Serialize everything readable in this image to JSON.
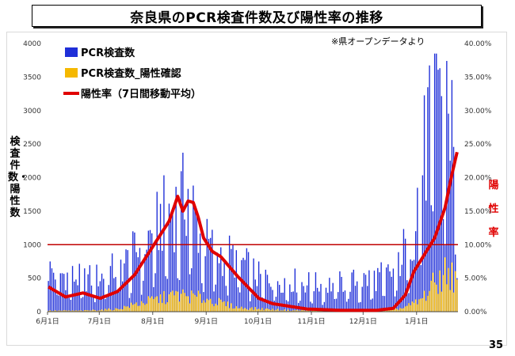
{
  "header": {
    "title": "奈良県のPCR検査件数及び陽性率の推移"
  },
  "source_note": "※県オープンデータより",
  "y_left_label": "検査件数・陽性数",
  "y_right_label": "陽性率",
  "page_number": "35",
  "colors": {
    "tests": "#1f2fd8",
    "positives": "#f5b800",
    "rate": "#e00000",
    "threshold": "#c00000"
  },
  "chart_data": {
    "type": "bar",
    "title": "奈良県のPCR検査件数及び陽性率の推移",
    "x_tick_labels": [
      "6月1日",
      "7月1日",
      "8月1日",
      "9月1日",
      "10月1日",
      "11月1日",
      "12月1日",
      "1月1日"
    ],
    "y_left": {
      "lim": [
        0,
        4000
      ],
      "ticks": [
        "0",
        "500",
        "1000",
        "1500",
        "2000",
        "2500",
        "3000",
        "3500",
        "4000"
      ]
    },
    "y_right": {
      "lim": [
        0,
        40
      ],
      "ticks": [
        "0.00%",
        "5.00%",
        "10.00%",
        "15.00%",
        "20.00%",
        "25.00%",
        "30.00%",
        "35.00%",
        "40.00%"
      ]
    },
    "threshold_line": {
      "axis": "right",
      "value": 10
    },
    "legend": [
      "PCR検査数",
      "PCR検査数_陽性確認",
      "陽性率（7日間移動平均）"
    ],
    "series": [
      {
        "name": "PCR検査数",
        "kind": "bar",
        "axis": "left",
        "control_days": [
          0,
          10,
          20,
          30,
          45,
          60,
          66,
          75,
          81,
          86,
          90,
          95,
          110,
          122,
          140,
          160,
          182,
          200,
          212,
          214,
          220,
          222,
          226,
          228,
          231,
          234,
          237
        ],
        "control_values": [
          600,
          520,
          470,
          500,
          700,
          1100,
          1350,
          1500,
          1700,
          1300,
          1000,
          900,
          750,
          500,
          450,
          380,
          450,
          550,
          1200,
          1700,
          2500,
          3200,
          3800,
          3100,
          3300,
          2600,
          1600
        ]
      },
      {
        "name": "PCR検査数_陽性確認",
        "kind": "bar",
        "axis": "left",
        "control_days": [
          0,
          20,
          40,
          55,
          75,
          90,
          110,
          140,
          182,
          205,
          215,
          225,
          232,
          237
        ],
        "control_values": [
          15,
          15,
          40,
          140,
          250,
          200,
          60,
          20,
          10,
          50,
          150,
          450,
          620,
          420
        ]
      },
      {
        "name": "陽性率（7日間移動平均）",
        "kind": "line",
        "axis": "right",
        "control_days": [
          0,
          10,
          20,
          30,
          40,
          50,
          60,
          70,
          75,
          78,
          81,
          84,
          87,
          90,
          95,
          100,
          110,
          122,
          130,
          150,
          170,
          190,
          200,
          207,
          212,
          218,
          224,
          230,
          234,
          237
        ],
        "control_values": [
          3.7,
          2.2,
          2.8,
          2.0,
          3.0,
          5.5,
          9.5,
          13.5,
          17.2,
          15.0,
          16.5,
          16.3,
          14.0,
          11.0,
          9.0,
          8.2,
          5.2,
          2.0,
          1.2,
          0.4,
          0.2,
          0.2,
          0.5,
          2.5,
          6.0,
          8.5,
          11.0,
          15.5,
          20.5,
          23.8
        ]
      }
    ]
  }
}
